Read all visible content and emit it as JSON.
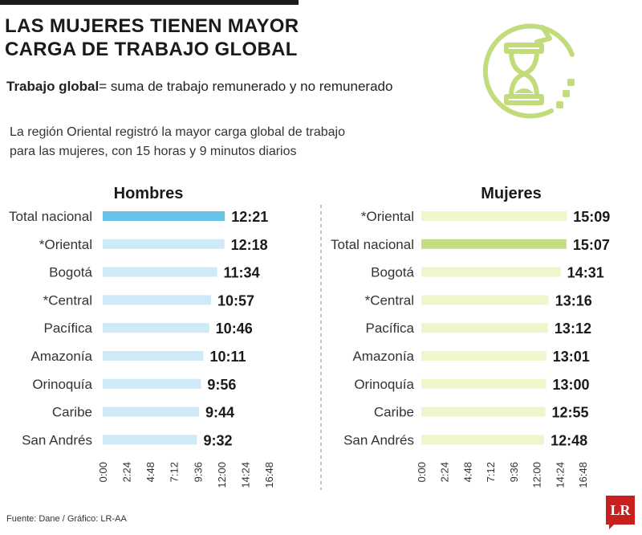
{
  "header": {
    "title_line1": "LAS MUJERES TIENEN MAYOR",
    "title_line2": "CARGA DE TRABAJO GLOBAL",
    "definition_term": "Trabajo global",
    "definition_text": "= suma de trabajo remunerado y no remunerado",
    "subtitle_line1": "La región Oriental registró la mayor carga global de trabajo",
    "subtitle_line2": "para las mujeres, con 15 horas y 9 minutos diarios"
  },
  "footer": {
    "source": "Fuente: Dane / Gráfico: LR-AA",
    "badge": "LR"
  },
  "colors": {
    "hombres_bar": "#cdeaf6",
    "hombres_highlight": "#67c2e6",
    "mujeres_bar": "#eef6cc",
    "mujeres_highlight": "#c6dc80",
    "icon_green": "#c2dc7c"
  },
  "chart_data": [
    {
      "type": "bar",
      "orientation": "horizontal",
      "title": "Hombres",
      "categories": [
        "Total nacional",
        "*Oriental",
        "Bogotá",
        "*Central",
        "Pacífica",
        "Amazonía",
        "Orinoquía",
        "Caribe",
        "San Andrés"
      ],
      "values": [
        "12:21",
        "12:18",
        "11:34",
        "10:57",
        "10:46",
        "10:11",
        "9:56",
        "9:44",
        "9:32"
      ],
      "highlight_category": "Total nacional",
      "value_unit": "horas:minutos",
      "xlim": [
        "0:00",
        "16:48"
      ],
      "x_ticks": [
        "0:00",
        "2:24",
        "4:48",
        "7:12",
        "9:36",
        "12:00",
        "14:24",
        "16:48"
      ],
      "grid": false
    },
    {
      "type": "bar",
      "orientation": "horizontal",
      "title": "Mujeres",
      "categories": [
        "*Oriental",
        "Total nacional",
        "Bogotá",
        "*Central",
        "Pacífica",
        "Amazonía",
        "Orinoquía",
        "Caribe",
        "San Andrés"
      ],
      "values": [
        "15:09",
        "15:07",
        "14:31",
        "13:16",
        "13:12",
        "13:01",
        "13:00",
        "12:55",
        "12:48"
      ],
      "highlight_category": "Total nacional",
      "value_unit": "horas:minutos",
      "xlim": [
        "0:00",
        "16:48"
      ],
      "x_ticks": [
        "0:00",
        "2:24",
        "4:48",
        "7:12",
        "9:36",
        "12:00",
        "14:24",
        "16:48"
      ],
      "grid": false
    }
  ]
}
